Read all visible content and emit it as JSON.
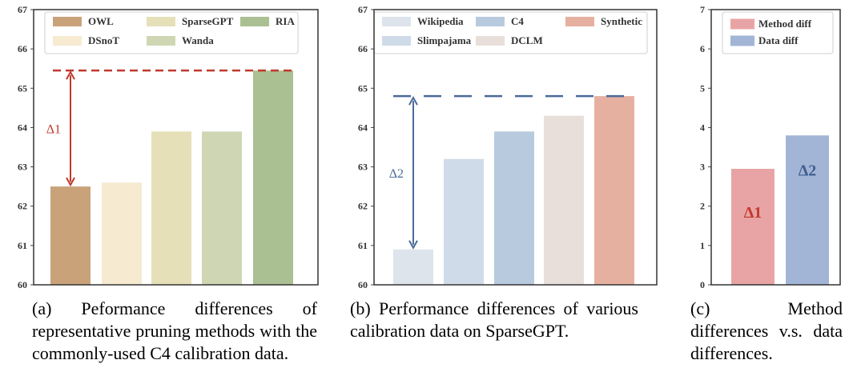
{
  "chart_data": [
    {
      "type": "bar",
      "categories": [
        "OWL",
        "DSnoT",
        "SparseGPT",
        "Wanda",
        "RIA"
      ],
      "values": [
        62.5,
        62.6,
        63.9,
        63.9,
        65.45
      ],
      "colors": [
        "#c9a27a",
        "#f6ead1",
        "#e6e0b8",
        "#cfd6b4",
        "#abc092"
      ],
      "ylim": [
        60,
        67
      ],
      "yticks": [
        "60",
        "61",
        "62",
        "63",
        "64",
        "65",
        "66",
        "67"
      ],
      "legend": {
        "placement": "top",
        "entries": [
          "OWL",
          "DSnoT",
          "SparseGPT",
          "Wanda",
          "RIA"
        ]
      },
      "annotation": {
        "label": "Δ1",
        "from": 62.5,
        "to": 65.45,
        "color": "#c0392b"
      },
      "caption": "(a) Peformance differences of representative pruning methods with the commonly-used C4 calibration data."
    },
    {
      "type": "bar",
      "categories": [
        "Wikipedia",
        "Slimpajama",
        "C4",
        "DCLM",
        "Synthetic"
      ],
      "values": [
        60.9,
        63.2,
        63.9,
        64.3,
        64.8
      ],
      "colors": [
        "#dde4ec",
        "#cfdbe8",
        "#b8cade",
        "#e9dfda",
        "#e6b0a0"
      ],
      "ylim": [
        60,
        67
      ],
      "yticks": [
        "60",
        "61",
        "62",
        "63",
        "64",
        "65",
        "66",
        "67"
      ],
      "legend": {
        "placement": "top",
        "entries": [
          "Wikipedia",
          "Slimpajama",
          "C4",
          "DCLM",
          "Synthetic"
        ]
      },
      "annotation": {
        "label": "Δ2",
        "from": 60.9,
        "to": 64.8,
        "color": "#4a6a9a"
      },
      "caption": "(b) Performance differences of various calibration data on SparseGPT."
    },
    {
      "type": "bar",
      "categories": [
        "Method diff",
        "Data diff"
      ],
      "values": [
        2.95,
        3.8
      ],
      "colors": [
        "#e8a4a4",
        "#a3b5d6"
      ],
      "bar_labels": [
        "Δ1",
        "Δ2"
      ],
      "bar_label_colors": [
        "#c0392b",
        "#3e5f8f"
      ],
      "ylim": [
        0,
        7
      ],
      "yticks": [
        "0",
        "1",
        "2",
        "3",
        "4",
        "5",
        "6",
        "7"
      ],
      "legend": {
        "placement": "top-left",
        "entries": [
          "Method diff",
          "Data diff"
        ]
      },
      "caption": "(c) Method differences v.s. data differences."
    }
  ]
}
